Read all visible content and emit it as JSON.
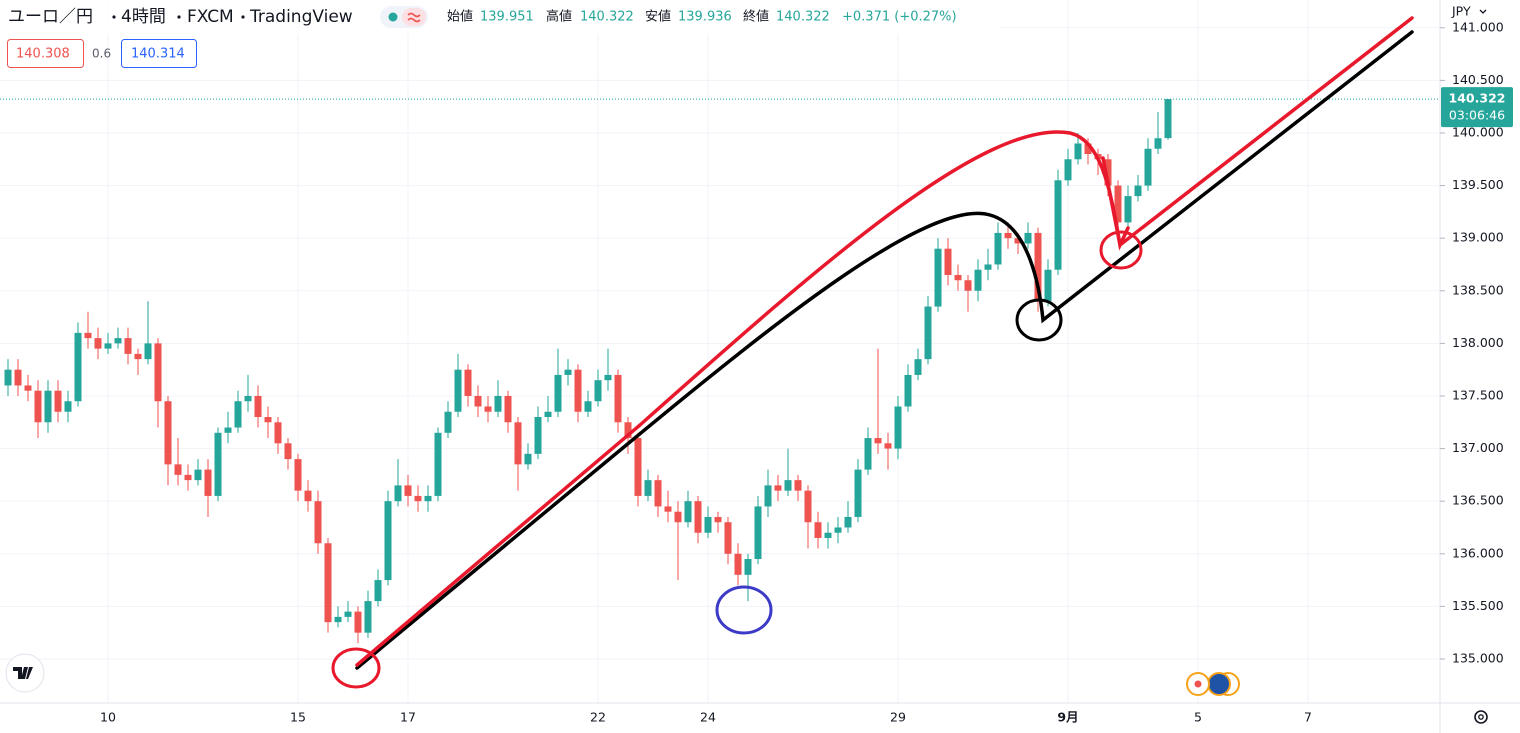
{
  "header": {
    "symbol": "ユーロ／円",
    "interval": "4時間",
    "source": "FXCM",
    "platform": "TradingView",
    "open_label": "始値",
    "open": "139.951",
    "high_label": "高値",
    "high": "140.322",
    "low_label": "安値",
    "low": "139.936",
    "close_label": "終値",
    "close": "140.322",
    "change": "+0.371 (+0.27%)"
  },
  "quote": {
    "bid": "140.308",
    "spread": "0.6",
    "ask": "140.314"
  },
  "price_scale": {
    "currency": "JPY",
    "last_price": "140.322",
    "countdown": "03:06:46"
  },
  "chart_data": {
    "type": "candlestick",
    "up_color": "#26a69a",
    "down_color": "#ef5350",
    "grid": true,
    "categories": [
      null,
      null,
      null,
      null,
      null,
      null,
      null,
      null,
      null,
      null,
      "10",
      null,
      null,
      null,
      null,
      null,
      null,
      null,
      null,
      null,
      null,
      null,
      null,
      null,
      null,
      null,
      null,
      null,
      null,
      "15",
      null,
      null,
      null,
      null,
      null,
      null,
      null,
      null,
      null,
      null,
      "17",
      null,
      null,
      null,
      null,
      null,
      null,
      null,
      null,
      null,
      null,
      null,
      null,
      null,
      null,
      null,
      null,
      null,
      null,
      "22",
      null,
      null,
      null,
      null,
      null,
      null,
      null,
      null,
      null,
      null,
      "24",
      null,
      null,
      null,
      null,
      null,
      null,
      null,
      null,
      null,
      null,
      null,
      null,
      null,
      null,
      null,
      null,
      null,
      null,
      "29",
      null,
      null,
      null,
      null,
      null,
      null,
      null,
      null,
      null,
      null,
      null,
      null,
      null,
      null,
      null,
      null,
      "9月",
      null,
      null,
      null,
      null,
      null,
      null,
      null,
      null,
      null,
      null,
      null,
      null,
      "5",
      null,
      null,
      null,
      null,
      null,
      null,
      null,
      null,
      null,
      null,
      "7",
      null,
      null,
      null,
      null,
      null,
      null,
      null,
      null,
      null,
      null,
      null
    ],
    "open": [
      137.6,
      137.75,
      137.6,
      137.55,
      137.25,
      137.55,
      137.35,
      137.45,
      138.1,
      138.05,
      137.95,
      138.0,
      138.05,
      137.9,
      137.85,
      138.0,
      137.45,
      136.85,
      136.75,
      136.7,
      136.8,
      136.55,
      137.15,
      137.2,
      137.45,
      137.5,
      137.3,
      137.25,
      137.05,
      136.9,
      136.6,
      136.5,
      136.1,
      135.35,
      135.4,
      135.45,
      135.25,
      135.55,
      135.75,
      136.5,
      136.65,
      136.55,
      136.5,
      136.55,
      137.15,
      137.35,
      137.75,
      137.5,
      137.4,
      137.35,
      137.5,
      137.25,
      136.85,
      136.95,
      137.3,
      137.35,
      137.7,
      137.75,
      137.35,
      137.45,
      137.65,
      137.7,
      137.25,
      137.1,
      136.55,
      136.7,
      136.45,
      136.4,
      136.3,
      136.5,
      136.2,
      136.35,
      136.3,
      136.0,
      135.8,
      135.95,
      136.45,
      136.65,
      136.6,
      136.7,
      136.6,
      136.3,
      136.15,
      136.2,
      136.25,
      136.35,
      136.8,
      137.1,
      137.05,
      137.0,
      137.4,
      137.7,
      137.85,
      138.35,
      138.9,
      138.65,
      138.6,
      138.5,
      138.7,
      138.75,
      139.05,
      139.0,
      138.95,
      139.05,
      138.4,
      138.7,
      139.55,
      139.75,
      139.9,
      139.8,
      139.75,
      139.5,
      139.15,
      139.4,
      139.5,
      139.85,
      139.951,
      null,
      null,
      null,
      null,
      null,
      null,
      null,
      null,
      null,
      null,
      null,
      null,
      null,
      null,
      null,
      null,
      null,
      null,
      null,
      null,
      null,
      null,
      null,
      null,
      null
    ],
    "high": [
      137.85,
      137.85,
      137.7,
      137.65,
      137.65,
      137.65,
      137.55,
      138.2,
      138.3,
      138.15,
      138.1,
      138.15,
      138.15,
      137.95,
      138.4,
      138.05,
      137.5,
      137.1,
      136.85,
      136.9,
      136.9,
      137.2,
      137.35,
      137.55,
      137.7,
      137.6,
      137.4,
      137.3,
      137.1,
      136.95,
      136.7,
      136.6,
      136.15,
      135.5,
      135.55,
      135.5,
      135.65,
      135.85,
      136.6,
      136.9,
      136.75,
      136.65,
      136.65,
      137.2,
      137.45,
      137.9,
      137.8,
      137.6,
      137.5,
      137.65,
      137.55,
      137.3,
      137.05,
      137.4,
      137.5,
      137.95,
      137.85,
      137.8,
      137.55,
      137.75,
      137.95,
      137.75,
      137.3,
      137.15,
      136.8,
      136.75,
      136.6,
      136.5,
      136.6,
      136.55,
      136.45,
      136.4,
      136.35,
      136.1,
      136.0,
      136.55,
      136.8,
      136.75,
      137.0,
      136.75,
      136.65,
      136.4,
      136.3,
      136.35,
      136.5,
      136.9,
      137.2,
      137.95,
      137.15,
      137.5,
      137.8,
      137.95,
      138.45,
      139.0,
      139.0,
      138.75,
      138.65,
      138.8,
      138.9,
      139.15,
      139.15,
      139.05,
      139.15,
      139.1,
      138.8,
      139.65,
      139.85,
      140.0,
      139.95,
      139.85,
      139.8,
      139.55,
      139.5,
      139.6,
      139.95,
      140.2,
      140.322,
      null,
      null,
      null,
      null,
      null,
      null,
      null,
      null,
      null,
      null,
      null,
      null,
      null,
      null,
      null,
      null,
      null,
      null,
      null,
      null,
      null,
      null,
      null,
      null,
      null
    ],
    "low": [
      137.5,
      137.5,
      137.45,
      137.1,
      137.15,
      137.25,
      137.25,
      137.4,
      137.95,
      137.85,
      137.9,
      137.95,
      137.8,
      137.7,
      137.8,
      137.2,
      136.65,
      136.65,
      136.6,
      136.65,
      136.35,
      136.5,
      137.05,
      137.15,
      137.35,
      137.2,
      137.1,
      136.95,
      136.8,
      136.5,
      136.4,
      136.0,
      135.25,
      135.3,
      135.35,
      135.15,
      135.2,
      135.5,
      135.7,
      136.45,
      136.45,
      136.4,
      136.4,
      136.5,
      137.1,
      137.3,
      137.4,
      137.3,
      137.25,
      137.3,
      137.15,
      136.6,
      136.8,
      136.9,
      137.25,
      137.3,
      137.6,
      137.25,
      137.3,
      137.4,
      137.55,
      137.15,
      136.95,
      136.45,
      136.5,
      136.35,
      136.3,
      135.75,
      136.25,
      136.1,
      136.15,
      136.2,
      135.9,
      135.7,
      135.55,
      135.9,
      136.35,
      136.5,
      136.55,
      136.5,
      136.05,
      136.05,
      136.05,
      136.1,
      136.2,
      136.3,
      136.75,
      136.95,
      136.8,
      136.9,
      137.35,
      137.65,
      137.8,
      138.3,
      138.55,
      138.5,
      138.3,
      138.4,
      138.6,
      138.7,
      138.9,
      138.85,
      138.9,
      138.3,
      138.35,
      138.65,
      139.5,
      139.7,
      139.7,
      139.6,
      139.4,
      139.05,
      139.1,
      139.35,
      139.45,
      139.8,
      139.936,
      null,
      null,
      null,
      null,
      null,
      null,
      null,
      null,
      null,
      null,
      null,
      null,
      null,
      null,
      null,
      null,
      null,
      null,
      null,
      null,
      null,
      null,
      null,
      null,
      null
    ],
    "close": [
      137.75,
      137.6,
      137.55,
      137.25,
      137.55,
      137.35,
      137.45,
      138.1,
      138.05,
      137.95,
      138.0,
      138.05,
      137.9,
      137.85,
      138.0,
      137.45,
      136.85,
      136.75,
      136.7,
      136.8,
      136.55,
      137.15,
      137.2,
      137.45,
      137.5,
      137.3,
      137.25,
      137.05,
      136.9,
      136.6,
      136.5,
      136.1,
      135.35,
      135.4,
      135.45,
      135.25,
      135.55,
      135.75,
      136.5,
      136.65,
      136.55,
      136.5,
      136.55,
      137.15,
      137.35,
      137.75,
      137.5,
      137.4,
      137.35,
      137.5,
      137.25,
      136.85,
      136.95,
      137.3,
      137.35,
      137.7,
      137.75,
      137.35,
      137.45,
      137.65,
      137.7,
      137.25,
      137.1,
      136.55,
      136.7,
      136.45,
      136.4,
      136.3,
      136.5,
      136.2,
      136.35,
      136.3,
      136.0,
      135.8,
      135.95,
      136.45,
      136.65,
      136.6,
      136.7,
      136.6,
      136.3,
      136.15,
      136.2,
      136.25,
      136.35,
      136.8,
      137.1,
      137.05,
      137.0,
      137.4,
      137.7,
      137.85,
      138.35,
      138.9,
      138.65,
      138.6,
      138.5,
      138.7,
      138.75,
      139.05,
      139.0,
      138.95,
      139.05,
      138.4,
      138.7,
      139.55,
      139.75,
      139.9,
      139.8,
      139.75,
      139.5,
      139.15,
      139.4,
      139.5,
      139.85,
      139.95,
      140.322,
      null,
      null,
      null,
      null,
      null,
      null,
      null,
      null,
      null,
      null,
      null,
      null,
      null,
      null,
      null,
      null,
      null,
      null,
      null,
      null,
      null,
      null,
      null,
      null,
      null
    ],
    "ylim": [
      134.61,
      141.264
    ],
    "yticks": [
      {
        "value": 135,
        "label": "135.000"
      },
      {
        "value": 135.5,
        "label": "135.500"
      },
      {
        "value": 136,
        "label": "136.000"
      },
      {
        "value": 136.5,
        "label": "136.500"
      },
      {
        "value": 137,
        "label": "137.000"
      },
      {
        "value": 137.5,
        "label": "137.500"
      },
      {
        "value": 138,
        "label": "138.000"
      },
      {
        "value": 138.5,
        "label": "138.500"
      },
      {
        "value": 139,
        "label": "139.000"
      },
      {
        "value": 139.5,
        "label": "139.500"
      },
      {
        "value": 140,
        "label": "140.000"
      },
      {
        "value": 140.5,
        "label": "140.500"
      },
      {
        "value": 141,
        "label": "141.000"
      }
    ]
  }
}
